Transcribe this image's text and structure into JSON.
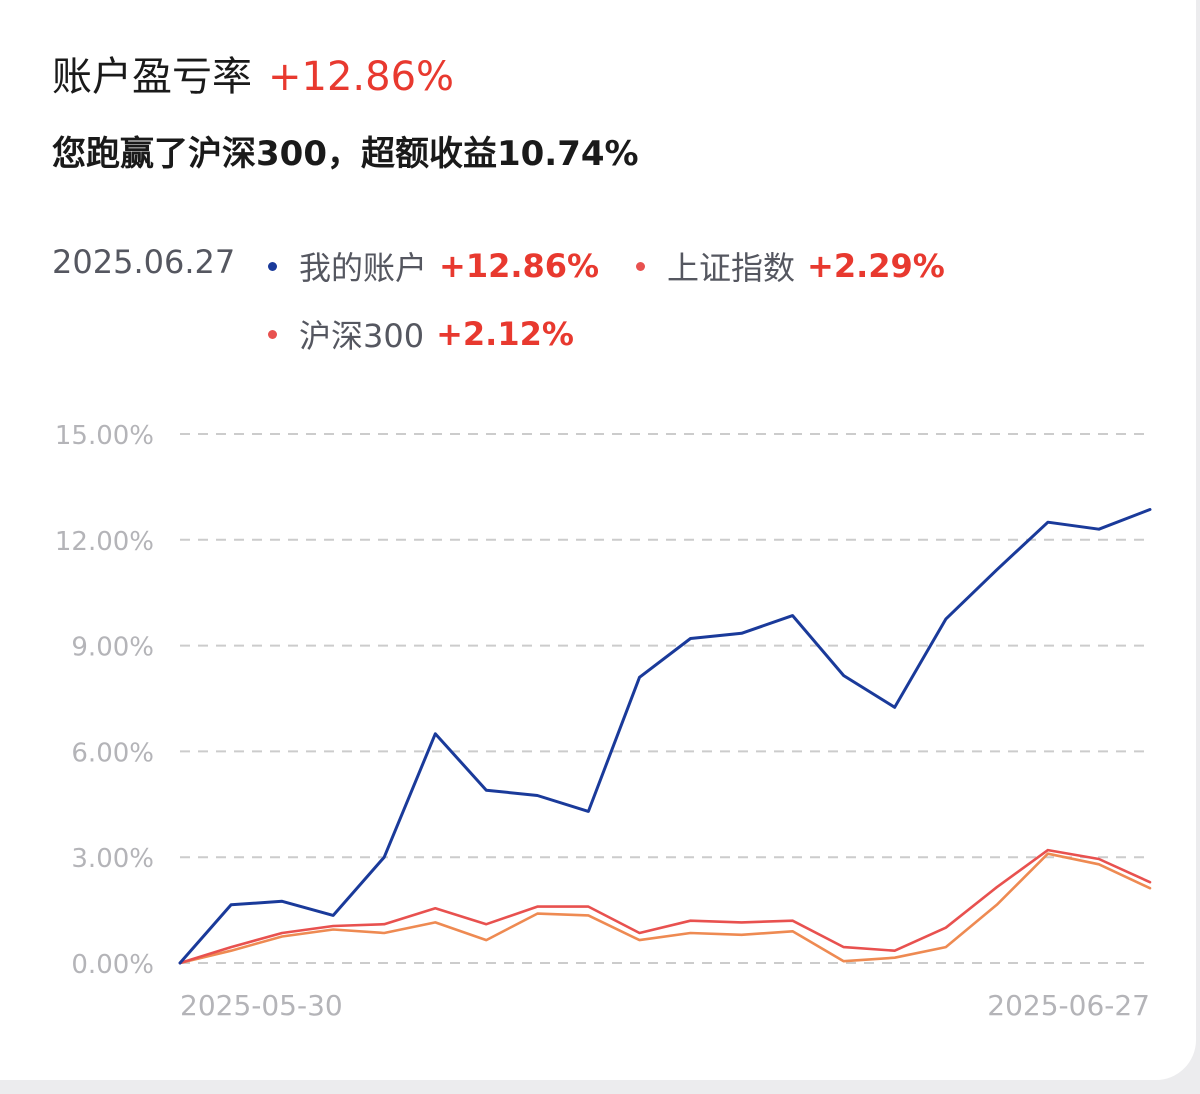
{
  "header": {
    "title": "账户盈亏率",
    "title_value": "+12.86%",
    "subtitle": "您跑赢了沪深300，超额收益10.74%"
  },
  "legend": {
    "date": "2025.06.27",
    "items": [
      {
        "name": "我的账户",
        "value": "+12.86%",
        "color": "#1a3a9a"
      },
      {
        "name": "上证指数",
        "value": "+2.29%",
        "color": "#e8514f"
      },
      {
        "name": "沪深300",
        "value": "+2.12%",
        "color": "#ee8a52"
      }
    ]
  },
  "colors": {
    "accent_red": "#e8392f",
    "grid": "#cccccc",
    "axis_text": "#b4b4b8"
  },
  "chart_data": {
    "type": "line",
    "x_tick_labels": [
      "2025-05-30",
      "2025-06-27"
    ],
    "y_tick_labels": [
      "15.00%",
      "12.00%",
      "9.00%",
      "6.00%",
      "3.00%",
      "0.00%"
    ],
    "ylim": [
      0,
      15
    ],
    "y_unit": "%",
    "grid": true,
    "grid_style": "dashed",
    "series": [
      {
        "name": "我的账户",
        "color": "#1a3a9a",
        "values": [
          0,
          1.65,
          1.75,
          1.35,
          3.0,
          6.5,
          4.9,
          4.75,
          4.3,
          8.1,
          9.2,
          9.35,
          9.85,
          8.15,
          7.25,
          9.75,
          11.15,
          12.5,
          12.3,
          12.86
        ]
      },
      {
        "name": "上证指数",
        "color": "#e8514f",
        "values": [
          0,
          0.45,
          0.85,
          1.05,
          1.1,
          1.55,
          1.1,
          1.6,
          1.6,
          0.85,
          1.2,
          1.15,
          1.2,
          0.45,
          0.35,
          1.0,
          2.15,
          3.2,
          2.95,
          2.29
        ]
      },
      {
        "name": "沪深300",
        "color": "#ee8a52",
        "values": [
          0,
          0.35,
          0.75,
          0.95,
          0.85,
          1.15,
          0.65,
          1.4,
          1.35,
          0.65,
          0.85,
          0.8,
          0.9,
          0.05,
          0.15,
          0.45,
          1.65,
          3.1,
          2.8,
          2.12
        ]
      }
    ]
  }
}
